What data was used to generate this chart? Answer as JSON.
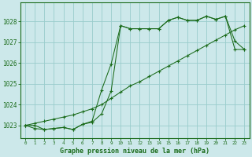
{
  "background_color": "#cce8ea",
  "grid_color": "#99cccc",
  "line_color": "#1a6b1a",
  "title": "Graphe pression niveau de la mer (hPa)",
  "xlim": [
    -0.5,
    23.5
  ],
  "ylim": [
    1022.4,
    1028.9
  ],
  "yticks": [
    1023,
    1024,
    1025,
    1026,
    1027,
    1028
  ],
  "xticks": [
    0,
    1,
    2,
    3,
    4,
    5,
    6,
    7,
    8,
    9,
    10,
    11,
    12,
    13,
    14,
    15,
    16,
    17,
    18,
    19,
    20,
    21,
    22,
    23
  ],
  "series1_x": [
    0,
    1,
    2,
    3,
    4,
    5,
    6,
    7,
    8,
    9,
    10,
    11,
    12,
    13,
    14,
    15,
    16,
    17,
    18,
    19,
    20,
    21,
    22,
    23
  ],
  "series1_y": [
    1023.0,
    1023.0,
    1022.8,
    1022.85,
    1022.9,
    1022.8,
    1023.05,
    1023.2,
    1024.7,
    1025.95,
    1027.8,
    1027.65,
    1027.65,
    1027.65,
    1027.65,
    1028.05,
    1028.2,
    1028.05,
    1028.05,
    1028.25,
    1028.1,
    1028.25,
    1027.05,
    1026.65
  ],
  "series2_x": [
    0,
    1,
    2,
    3,
    4,
    5,
    6,
    7,
    8,
    9,
    10,
    11,
    12,
    13,
    14,
    15,
    16,
    17,
    18,
    19,
    20,
    21,
    22,
    23
  ],
  "series2_y": [
    1023.0,
    1023.1,
    1023.2,
    1023.3,
    1023.4,
    1023.5,
    1023.65,
    1023.8,
    1024.0,
    1024.3,
    1024.6,
    1024.9,
    1025.1,
    1025.35,
    1025.6,
    1025.85,
    1026.1,
    1026.35,
    1026.6,
    1026.85,
    1027.1,
    1027.35,
    1027.6,
    1027.8
  ],
  "series3_x": [
    0,
    1,
    2,
    3,
    4,
    5,
    6,
    7,
    8,
    9,
    10,
    11,
    12,
    13,
    14,
    15,
    16,
    17,
    18,
    19,
    20,
    21,
    22,
    23
  ],
  "series3_y": [
    1023.0,
    1022.85,
    1022.8,
    1022.85,
    1022.9,
    1022.8,
    1023.05,
    1023.15,
    1023.55,
    1024.65,
    1027.8,
    1027.65,
    1027.65,
    1027.65,
    1027.65,
    1028.05,
    1028.2,
    1028.05,
    1028.05,
    1028.25,
    1028.1,
    1028.25,
    1026.65,
    1026.65
  ]
}
